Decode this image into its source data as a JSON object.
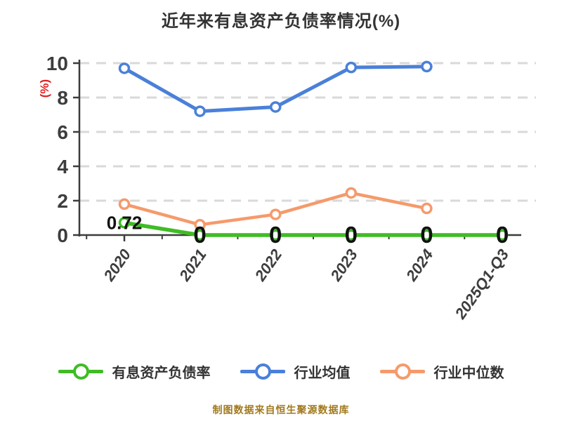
{
  "page": {
    "title": "近年来有息资产负债率情况(%)"
  },
  "y_axis_label": "(%)",
  "watermark": "制图数据来自恒生聚源数据库",
  "colors": {
    "title": "#333333",
    "axis": "#3c3c3c",
    "tick_label": "#3d3d3d",
    "grid": "#d9d9d9",
    "ylabel_red": "#e02020",
    "green": "#3fbc25",
    "blue": "#4a80d9",
    "orange": "#f59a6b",
    "data_label": "#111111",
    "watermark": "#a1791d",
    "background": "#ffffff"
  },
  "legend": {
    "items": [
      {
        "label": "有息资产负债率",
        "color": "#3fbc25"
      },
      {
        "label": "行业均值",
        "color": "#4a80d9"
      },
      {
        "label": "行业中位数",
        "color": "#f59a6b"
      }
    ]
  },
  "chart_data": {
    "type": "line",
    "title": "近年来有息资产负债率情况(%)",
    "xlabel": "",
    "ylabel": "(%)",
    "categories": [
      "2020",
      "2021",
      "2022",
      "2023",
      "2024",
      "2025Q1-Q3"
    ],
    "series": [
      {
        "name": "有息资产负债率",
        "color": "#3fbc25",
        "values": [
          0.72,
          0,
          0,
          0,
          0,
          0
        ],
        "labels": [
          "0.72",
          "0",
          "0",
          "0",
          "0",
          "0"
        ]
      },
      {
        "name": "行业均值",
        "color": "#4a80d9",
        "values": [
          9.7,
          7.2,
          7.45,
          9.75,
          9.8,
          null
        ]
      },
      {
        "name": "行业中位数",
        "color": "#f59a6b",
        "values": [
          1.8,
          0.6,
          1.2,
          2.45,
          1.55,
          null
        ]
      }
    ],
    "ylim": [
      0,
      10
    ],
    "yticks": [
      0,
      2,
      4,
      6,
      8,
      10
    ],
    "grid": "horizontal-dashed",
    "legend_position": "bottom"
  }
}
